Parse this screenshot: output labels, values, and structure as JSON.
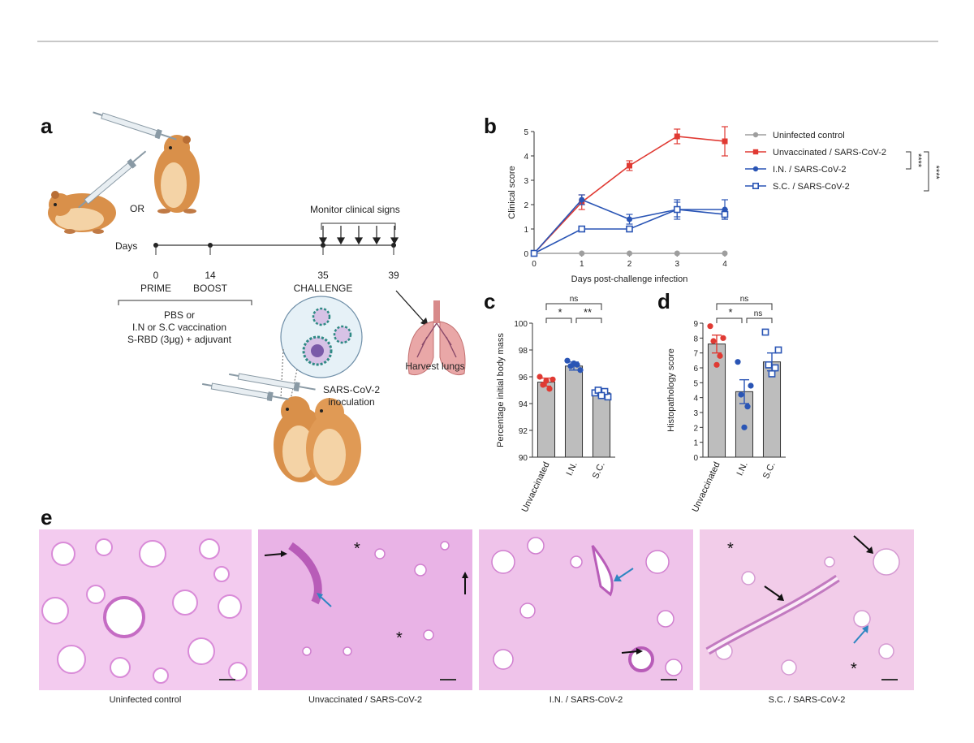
{
  "panels": {
    "a": "a",
    "b": "b",
    "c": "c",
    "d": "d",
    "e": "e"
  },
  "timeline": {
    "or_label": "OR",
    "days_label": "Days",
    "monitor_label": "Monitor clinical signs",
    "points": [
      {
        "day": "0",
        "event": "PRIME"
      },
      {
        "day": "14",
        "event": "BOOST"
      },
      {
        "day": "35",
        "event": "CHALLENGE"
      },
      {
        "day": "39",
        "event": ""
      }
    ],
    "vaccination_line1": "PBS or",
    "vaccination_line2": "I.N or S.C vaccination",
    "vaccination_line3": "S-RBD (3μg) + adjuvant",
    "harvest_label": "Harvest lungs",
    "inoculation_line1": "SARS-CoV-2",
    "inoculation_line2": "inoculation"
  },
  "chart_data": [
    {
      "panel": "b",
      "type": "line",
      "xlabel": "Days post-challenge infection",
      "ylabel": "Clinical score",
      "x": [
        0,
        1,
        2,
        3,
        4
      ],
      "xlim": [
        0,
        4
      ],
      "ylim": [
        0,
        5
      ],
      "yticks": [
        0,
        1,
        2,
        3,
        4,
        5
      ],
      "legend_position": "right",
      "series": [
        {
          "name": "Uninfected control",
          "color": "#9e9e9e",
          "marker": "circle",
          "values": [
            0,
            0,
            0,
            0,
            0
          ],
          "err": [
            0,
            0,
            0,
            0,
            0
          ]
        },
        {
          "name": "Unvaccinated / SARS-CoV-2",
          "color": "#e03a33",
          "marker": "square",
          "values": [
            0,
            2.1,
            3.6,
            4.8,
            4.6
          ],
          "err": [
            0,
            0.3,
            0.2,
            0.3,
            0.6
          ]
        },
        {
          "name": "I.N. / SARS-CoV-2",
          "color": "#2a55b5",
          "marker": "circle",
          "values": [
            0,
            2.2,
            1.4,
            1.8,
            1.8
          ],
          "err": [
            0,
            0.2,
            0.2,
            0.4,
            0.4
          ]
        },
        {
          "name": "S.C. / SARS-CoV-2",
          "color": "#2a55b5",
          "marker": "open-square",
          "values": [
            0,
            1.0,
            1.0,
            1.8,
            1.6
          ],
          "err": [
            0,
            0,
            0.1,
            0.3,
            0.2
          ]
        }
      ],
      "significance": [
        "****",
        "****"
      ]
    },
    {
      "panel": "c",
      "type": "bar",
      "ylabel": "Percentage initial body mass",
      "categories": [
        "Unvaccinated",
        "I.N.",
        "S.C."
      ],
      "values": [
        95.6,
        96.8,
        94.8
      ],
      "err": [
        0.3,
        0.3,
        0.2
      ],
      "colors": [
        "#e03a33",
        "#2a55b5",
        "#2a55b5"
      ],
      "markers": [
        "circle",
        "circle",
        "open-square"
      ],
      "points": [
        [
          96.0,
          95.8,
          95.4,
          95.1,
          95.7
        ],
        [
          97.2,
          96.5,
          96.8,
          96.9,
          97.0
        ],
        [
          94.8,
          94.5,
          95.0,
          94.9,
          94.6
        ]
      ],
      "ylim": [
        90,
        100
      ],
      "yticks": [
        90,
        92,
        94,
        96,
        98,
        100
      ],
      "comparisons": [
        {
          "from": 0,
          "to": 1,
          "label": "*"
        },
        {
          "from": 1,
          "to": 2,
          "label": "**"
        },
        {
          "from": 0,
          "to": 2,
          "label": "ns"
        }
      ]
    },
    {
      "panel": "d",
      "type": "bar",
      "ylabel": "Histopathology score",
      "categories": [
        "Unvaccinated",
        "I.N.",
        "S.C."
      ],
      "values": [
        7.6,
        4.4,
        6.4
      ],
      "err": [
        0.6,
        0.8,
        0.6
      ],
      "colors": [
        "#e03a33",
        "#2a55b5",
        "#2a55b5"
      ],
      "markers": [
        "circle",
        "circle",
        "open-square"
      ],
      "points": [
        [
          8.8,
          8.0,
          7.8,
          6.8,
          6.2
        ],
        [
          6.4,
          4.8,
          4.2,
          3.4,
          2.0
        ],
        [
          8.4,
          7.2,
          6.2,
          6.0,
          5.6
        ]
      ],
      "ylim": [
        0,
        9
      ],
      "yticks": [
        0,
        1,
        2,
        3,
        4,
        5,
        6,
        7,
        8,
        9
      ],
      "comparisons": [
        {
          "from": 0,
          "to": 1,
          "label": "*"
        },
        {
          "from": 1,
          "to": 2,
          "label": "ns"
        },
        {
          "from": 0,
          "to": 2,
          "label": "ns"
        }
      ]
    }
  ],
  "histology": [
    {
      "caption": "Uninfected control"
    },
    {
      "caption": "Unvaccinated / SARS-CoV-2"
    },
    {
      "caption": "I.N. / SARS-CoV-2"
    },
    {
      "caption": "S.C. / SARS-CoV-2"
    }
  ],
  "colors": {
    "tissue_bg": "#f2c8ef",
    "tissue_dense": "#d98bd8",
    "air_space": "#ffffff",
    "arrow_black": "#111111",
    "arrow_blue": "#2e86c1"
  }
}
